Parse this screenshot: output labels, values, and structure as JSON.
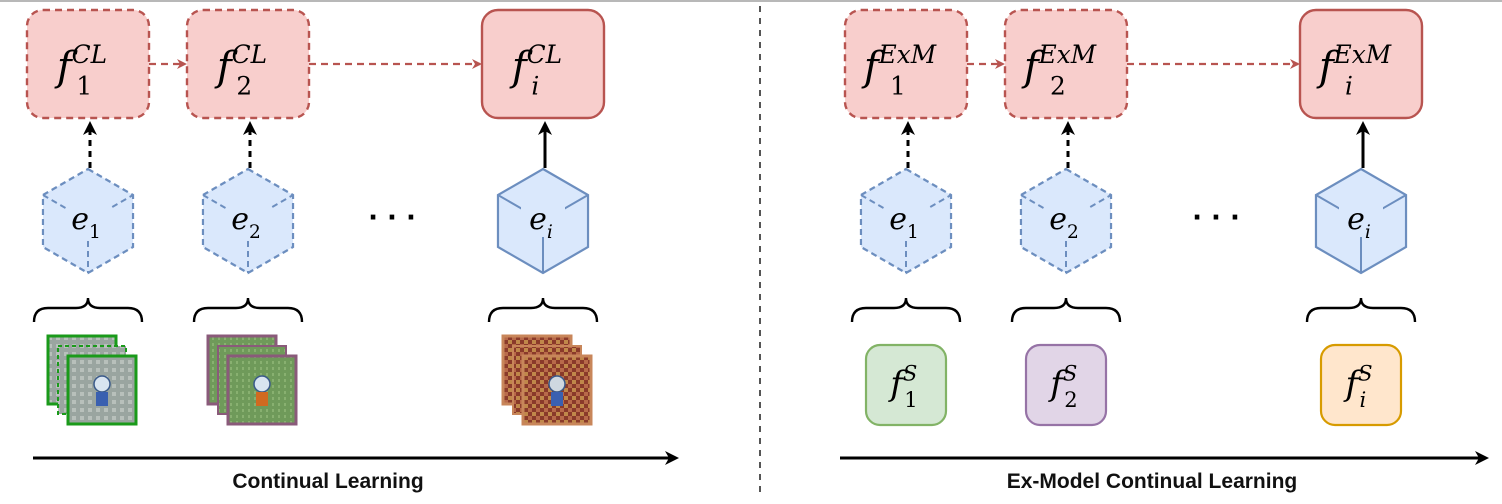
{
  "panels": [
    {
      "caption": "Continual Learning",
      "model_sup": "CL",
      "experiences": [
        {
          "model_sub": "1",
          "exp_sub": "1",
          "state": "past"
        },
        {
          "model_sub": "2",
          "exp_sub": "2",
          "state": "past"
        },
        {
          "model_sub": "i",
          "exp_sub": "i",
          "state": "current"
        }
      ],
      "data_kind": "images",
      "ellipsis": "· · ·"
    },
    {
      "caption": "Ex-Model Continual Learning",
      "model_sup": "ExM",
      "experiences": [
        {
          "model_sub": "1",
          "exp_sub": "1",
          "state": "past",
          "source": {
            "sub": "1",
            "sup": "S"
          }
        },
        {
          "model_sub": "2",
          "exp_sub": "2",
          "state": "past",
          "source": {
            "sub": "2",
            "sup": "S"
          }
        },
        {
          "model_sub": "i",
          "exp_sub": "i",
          "state": "current",
          "source": {
            "sub": "i",
            "sup": "S"
          }
        }
      ],
      "data_kind": "models",
      "ellipsis": "· · ·"
    }
  ],
  "colors": {
    "model_fill": "#f8cecc",
    "model_stroke": "#b85450",
    "exp_fill": "#dae8fc",
    "exp_stroke": "#6c8ebf",
    "source_models": [
      {
        "fill": "#d5e8d4",
        "stroke": "#82b366"
      },
      {
        "fill": "#e1d5e7",
        "stroke": "#9673a6"
      },
      {
        "fill": "#ffe6cc",
        "stroke": "#d79b00"
      }
    ],
    "image_frames": [
      "#1a9a1a",
      "#8a5a7a",
      "#c8865a"
    ]
  },
  "icons": [
    "dashed-arrow-icon",
    "solid-arrow-icon",
    "cube-icon",
    "curly-brace-icon",
    "image-stack-icon"
  ]
}
